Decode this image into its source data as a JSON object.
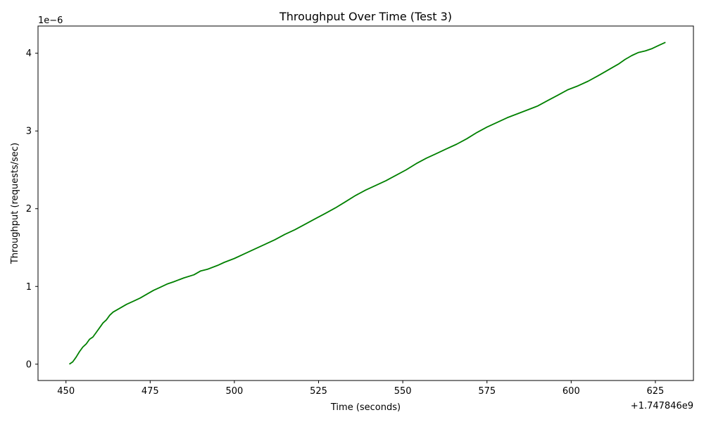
{
  "chart_data": {
    "type": "line",
    "title": "Throughput Over Time (Test 3)",
    "xlabel": "Time (seconds)",
    "ylabel": "Throughput (requests/sec)",
    "x_offset_label": "+1.747846e9",
    "y_scale_label": "1e−6",
    "xlim": [
      441.7,
      636.3
    ],
    "ylim": [
      -0.21,
      4.35
    ],
    "x_ticks": [
      450,
      475,
      500,
      525,
      550,
      575,
      600,
      625
    ],
    "x_tick_labels": [
      "450",
      "475",
      "500",
      "525",
      "550",
      "575",
      "600",
      "625"
    ],
    "y_ticks": [
      0,
      1,
      2,
      3,
      4
    ],
    "y_tick_labels": [
      "0",
      "1",
      "2",
      "3",
      "4"
    ],
    "grid": false,
    "legend": "none",
    "series": [
      {
        "color": "#008000",
        "x": [
          451,
          452,
          453,
          454,
          455,
          456,
          457,
          458,
          459,
          460,
          461,
          462,
          463,
          464,
          466,
          468,
          470,
          472,
          474,
          476,
          478,
          480,
          482,
          485,
          488,
          490,
          492,
          495,
          497,
          500,
          503,
          506,
          509,
          512,
          515,
          518,
          521,
          524,
          527,
          530,
          533,
          536,
          539,
          542,
          545,
          548,
          551,
          554,
          557,
          560,
          563,
          566,
          569,
          572,
          575,
          578,
          581,
          584,
          587,
          590,
          593,
          596,
          599,
          602,
          605,
          608,
          610,
          612,
          614,
          616,
          618,
          620,
          622,
          624,
          626,
          628
        ],
        "values": [
          0.0,
          0.03,
          0.09,
          0.16,
          0.22,
          0.26,
          0.32,
          0.35,
          0.41,
          0.47,
          0.53,
          0.57,
          0.63,
          0.67,
          0.72,
          0.77,
          0.81,
          0.85,
          0.9,
          0.95,
          0.99,
          1.03,
          1.06,
          1.11,
          1.15,
          1.2,
          1.22,
          1.27,
          1.31,
          1.36,
          1.42,
          1.48,
          1.54,
          1.6,
          1.67,
          1.73,
          1.8,
          1.87,
          1.94,
          2.01,
          2.09,
          2.17,
          2.24,
          2.3,
          2.36,
          2.43,
          2.5,
          2.58,
          2.65,
          2.71,
          2.77,
          2.83,
          2.9,
          2.98,
          3.05,
          3.11,
          3.17,
          3.22,
          3.27,
          3.32,
          3.39,
          3.46,
          3.53,
          3.58,
          3.64,
          3.71,
          3.76,
          3.81,
          3.86,
          3.92,
          3.97,
          4.01,
          4.03,
          4.06,
          4.1,
          4.14
        ]
      }
    ]
  }
}
